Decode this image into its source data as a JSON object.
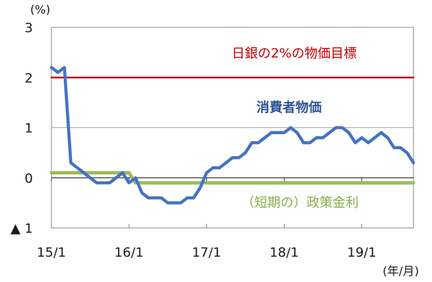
{
  "chart_data": {
    "type": "line",
    "y_unit": "(%)",
    "x_unit": "(年/月)",
    "ylim": [
      -1,
      3
    ],
    "yticks": [
      {
        "value": 3,
        "label": "3"
      },
      {
        "value": 2,
        "label": "2"
      },
      {
        "value": 1,
        "label": "1"
      },
      {
        "value": 0,
        "label": "0"
      },
      {
        "value": -1,
        "label": "▲ 1"
      }
    ],
    "xticks": [
      {
        "x": "2015-01",
        "label": "15/1"
      },
      {
        "x": "2016-01",
        "label": "16/1"
      },
      {
        "x": "2017-01",
        "label": "17/1"
      },
      {
        "x": "2018-01",
        "label": "18/1"
      },
      {
        "x": "2019-01",
        "label": "19/1"
      }
    ],
    "grid": "horizontal",
    "colors": {
      "cpi": "#4472c4",
      "target": "#c00000",
      "policy": "#9bbb59",
      "grid": "#a6a6a6",
      "axis": "#808080"
    },
    "series": [
      {
        "name": "消費者物価",
        "color": "#4472c4",
        "points": [
          [
            "2015-01",
            2.2
          ],
          [
            "2015-02",
            2.1
          ],
          [
            "2015-03",
            2.2
          ],
          [
            "2015-04",
            0.3
          ],
          [
            "2015-05",
            0.2
          ],
          [
            "2015-06",
            0.1
          ],
          [
            "2015-07",
            0.0
          ],
          [
            "2015-08",
            -0.1
          ],
          [
            "2015-09",
            -0.1
          ],
          [
            "2015-10",
            -0.1
          ],
          [
            "2015-11",
            0.0
          ],
          [
            "2015-12",
            0.1
          ],
          [
            "2016-01",
            -0.1
          ],
          [
            "2016-02",
            0.0
          ],
          [
            "2016-03",
            -0.3
          ],
          [
            "2016-04",
            -0.4
          ],
          [
            "2016-05",
            -0.4
          ],
          [
            "2016-06",
            -0.4
          ],
          [
            "2016-07",
            -0.5
          ],
          [
            "2016-08",
            -0.5
          ],
          [
            "2016-09",
            -0.5
          ],
          [
            "2016-10",
            -0.4
          ],
          [
            "2016-11",
            -0.4
          ],
          [
            "2016-12",
            -0.2
          ],
          [
            "2017-01",
            0.1
          ],
          [
            "2017-02",
            0.2
          ],
          [
            "2017-03",
            0.2
          ],
          [
            "2017-04",
            0.3
          ],
          [
            "2017-05",
            0.4
          ],
          [
            "2017-06",
            0.4
          ],
          [
            "2017-07",
            0.5
          ],
          [
            "2017-08",
            0.7
          ],
          [
            "2017-09",
            0.7
          ],
          [
            "2017-10",
            0.8
          ],
          [
            "2017-11",
            0.9
          ],
          [
            "2017-12",
            0.9
          ],
          [
            "2018-01",
            0.9
          ],
          [
            "2018-02",
            1.0
          ],
          [
            "2018-03",
            0.9
          ],
          [
            "2018-04",
            0.7
          ],
          [
            "2018-05",
            0.7
          ],
          [
            "2018-06",
            0.8
          ],
          [
            "2018-07",
            0.8
          ],
          [
            "2018-08",
            0.9
          ],
          [
            "2018-09",
            1.0
          ],
          [
            "2018-10",
            1.0
          ],
          [
            "2018-11",
            0.9
          ],
          [
            "2018-12",
            0.7
          ],
          [
            "2019-01",
            0.8
          ],
          [
            "2019-02",
            0.7
          ],
          [
            "2019-03",
            0.8
          ],
          [
            "2019-04",
            0.9
          ],
          [
            "2019-05",
            0.8
          ],
          [
            "2019-06",
            0.6
          ],
          [
            "2019-07",
            0.6
          ],
          [
            "2019-08",
            0.5
          ],
          [
            "2019-09",
            0.3
          ]
        ]
      },
      {
        "name": "(短期の) 政策金利",
        "color": "#9bbb59",
        "points": [
          [
            "2015-01",
            0.1
          ],
          [
            "2016-01",
            0.1
          ],
          [
            "2016-02",
            -0.1
          ],
          [
            "2019-09",
            -0.1
          ]
        ]
      },
      {
        "name": "日銀の2%の物価目標",
        "color": "#c00000",
        "points": [
          [
            "2015-01",
            2.0
          ],
          [
            "2019-09",
            2.0
          ]
        ]
      }
    ],
    "annotations": [
      {
        "text": "日銀の2%の物価目標",
        "color": "#c00000",
        "bold": false
      },
      {
        "text": "消費者物価",
        "color": "#2e5597",
        "bold": true
      },
      {
        "text": "（短期の）政策金利",
        "color": "#8aad4a",
        "bold": false
      }
    ]
  }
}
